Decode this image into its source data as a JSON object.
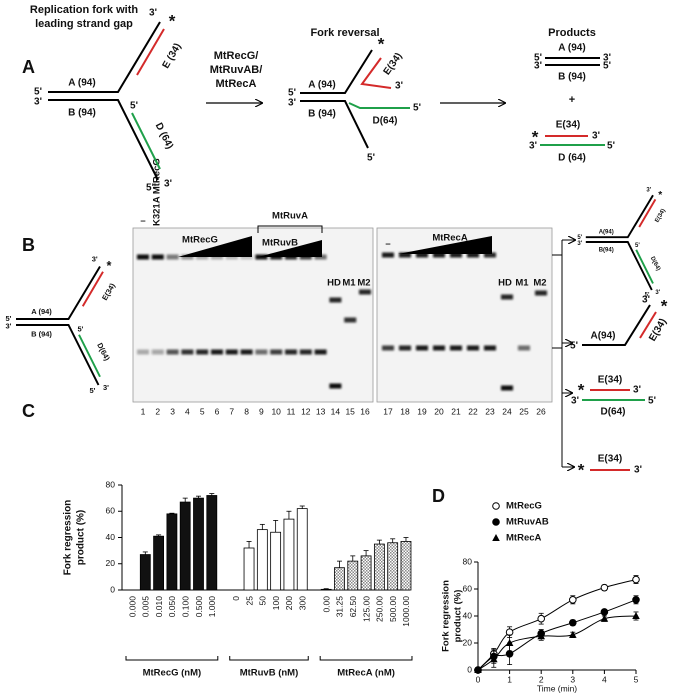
{
  "panel_labels": [
    "A",
    "B",
    "C",
    "D"
  ],
  "panel_a": {
    "fork_title": [
      "Replication fork with",
      "leading strand gap"
    ],
    "fork_labels": [
      "3'",
      "*",
      "E (34)",
      "5'",
      "A (94)",
      "3'",
      "B (94)",
      "5'",
      "D (64)",
      "5'",
      "3'"
    ],
    "enzymes": [
      "MtRecG/",
      "MtRuvAB/",
      "MtRecA"
    ],
    "reversal_title": "Fork reversal",
    "reversal_labels": [
      "5'",
      "A (94)",
      "3'",
      "*",
      "E(34)",
      "3'",
      "B (94)",
      "D(64)",
      "5'",
      "5'"
    ],
    "products_title": "Products",
    "product_duplex_1": [
      "5'",
      "A (94)",
      "3'",
      "3'",
      "B (94)",
      "5'"
    ],
    "plus": "+",
    "product_duplex_2": [
      "*",
      "E(34)",
      "3'",
      "3'",
      "D (64)",
      "5'"
    ]
  },
  "panel_b": {
    "gel_labels": {
      "no_protein_1": "–",
      "mutant": "K321A MtRecG",
      "recg": "MtRecG",
      "ruva": "MtRuvA",
      "ruvb": "MtRuvB",
      "no_protein_2": "–",
      "reca": "MtRecA"
    },
    "markers_1": [
      "HD",
      "M1",
      "M2"
    ],
    "markers_2": [
      "HD",
      "M1",
      "M2"
    ],
    "lane_numbers": [
      1,
      2,
      3,
      4,
      5,
      6,
      7,
      8,
      9,
      10,
      11,
      12,
      13,
      14,
      15,
      16,
      17,
      18,
      19,
      20,
      21,
      22,
      23,
      24,
      25,
      26
    ],
    "left_fork": [
      "3'",
      "*",
      "E(34)",
      "5'",
      "A (94)",
      "3'",
      "B (94)",
      "5'",
      "D(64)",
      "5'",
      "3'"
    ],
    "product_fork": [
      "3'",
      "*",
      "E(34)",
      "5'",
      "A(94)",
      "3'",
      "B(94)",
      "5'",
      "D(64)",
      "5'",
      "3'"
    ],
    "product_arm": [
      "3'",
      "*",
      "E(34)",
      "5'",
      "A(94)"
    ],
    "product_duplex": [
      "*",
      "E(34)",
      "3'",
      "3'",
      "D(64)",
      "5'"
    ],
    "product_strand": [
      "*",
      "E(34)",
      "3'"
    ]
  },
  "chart_data": [
    {
      "type": "bar",
      "ylabel": [
        "Fork regression",
        "product (%)"
      ],
      "ylim": [
        0,
        80
      ],
      "yticks": [
        0,
        20,
        40,
        60,
        80
      ],
      "groups": [
        {
          "label": "MtRecG (nM)",
          "pattern": "solid",
          "color": "#111111",
          "categories": [
            "0.000",
            "0.005",
            "0.010",
            "0.050",
            "0.100",
            "0.500",
            "1.000"
          ],
          "values": [
            0,
            27,
            41,
            58,
            67,
            70,
            72
          ],
          "errors": [
            0,
            2,
            1,
            0.5,
            3,
            1.5,
            1.5
          ]
        },
        {
          "label": "MtRuvB (nM)",
          "pattern": "solid",
          "color": "#ffffff",
          "categories": [
            "0",
            "25",
            "50",
            "100",
            "200",
            "300"
          ],
          "values": [
            0,
            32,
            46,
            44,
            54,
            62
          ],
          "errors": [
            0,
            5,
            4,
            9,
            6,
            2
          ]
        },
        {
          "label": "MtRecA (nM)",
          "pattern": "checker",
          "color": "#8a8a8a",
          "categories": [
            "0.00",
            "31.25",
            "62.50",
            "125.00",
            "250.00",
            "500.00",
            "1000.00"
          ],
          "values": [
            0.5,
            17,
            22,
            26,
            35,
            36,
            37
          ],
          "errors": [
            0.5,
            5,
            4,
            4,
            3,
            3,
            3
          ]
        }
      ]
    },
    {
      "type": "line",
      "ylabel": [
        "Fork regression",
        "product (%)"
      ],
      "xlabel": "Time (min)",
      "xlim": [
        0,
        5
      ],
      "xticks": [
        0,
        1,
        2,
        3,
        4,
        5
      ],
      "ylim": [
        0,
        80
      ],
      "yticks": [
        0,
        20,
        40,
        60,
        80
      ],
      "legend": "top-left",
      "x": [
        0,
        0.5,
        1,
        2,
        3,
        4,
        5
      ],
      "series": [
        {
          "name": "MtRecG",
          "color": "#000000",
          "marker": "open-circle",
          "values": [
            0,
            12,
            28,
            38,
            52,
            61,
            67
          ],
          "errors": [
            0,
            4,
            4,
            4,
            3,
            2,
            3
          ]
        },
        {
          "name": "MtRuvAB",
          "color": "#000000",
          "marker": "circle",
          "values": [
            0,
            10,
            12,
            27,
            35,
            43,
            52
          ],
          "errors": [
            0,
            5,
            8,
            3,
            2,
            1,
            3
          ]
        },
        {
          "name": "MtRecA",
          "color": "#000000",
          "marker": "triangle",
          "values": [
            0,
            8,
            20,
            25,
            26,
            38,
            40
          ],
          "errors": [
            0,
            6,
            6,
            3,
            2,
            2,
            3
          ]
        }
      ]
    }
  ]
}
